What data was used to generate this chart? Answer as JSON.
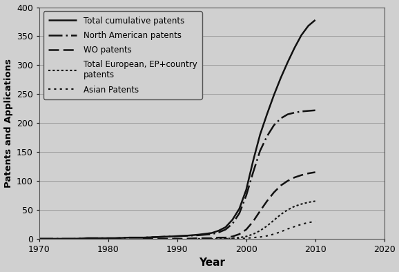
{
  "title": "",
  "xlabel": "Year",
  "ylabel": "Patents and Applications",
  "xlim": [
    1970,
    2020
  ],
  "ylim": [
    0,
    400
  ],
  "yticks": [
    0,
    50,
    100,
    150,
    200,
    250,
    300,
    350,
    400
  ],
  "xticks": [
    1970,
    1980,
    1990,
    2000,
    2010,
    2020
  ],
  "background_color": "#d0d0d0",
  "plot_bg_color": "#d0d0d0",
  "grid_color": "#999999",
  "series": [
    {
      "label": "Total cumulative patents",
      "style_index": 0,
      "linewidth": 1.8,
      "color": "#111111",
      "x": [
        1970,
        1973,
        1975,
        1977,
        1979,
        1981,
        1983,
        1985,
        1987,
        1989,
        1991,
        1993,
        1995,
        1996,
        1997,
        1998,
        1999,
        2000,
        2001,
        2002,
        2003,
        2004,
        2005,
        2006,
        2007,
        2008,
        2009,
        2010
      ],
      "y": [
        0,
        0,
        0,
        1,
        1,
        1,
        2,
        2,
        3,
        4,
        5,
        7,
        10,
        14,
        20,
        33,
        52,
        85,
        135,
        180,
        215,
        248,
        278,
        305,
        330,
        352,
        368,
        378
      ]
    },
    {
      "label": "North American patents",
      "style_index": 1,
      "linewidth": 1.8,
      "color": "#111111",
      "x": [
        1970,
        1973,
        1975,
        1977,
        1979,
        1981,
        1983,
        1985,
        1987,
        1989,
        1991,
        1993,
        1995,
        1996,
        1997,
        1998,
        1999,
        2000,
        2001,
        2002,
        2003,
        2004,
        2005,
        2006,
        2007,
        2008,
        2009,
        2010
      ],
      "y": [
        0,
        0,
        0,
        1,
        1,
        1,
        2,
        2,
        3,
        4,
        5,
        6,
        8,
        11,
        16,
        26,
        44,
        75,
        115,
        152,
        177,
        196,
        208,
        215,
        218,
        220,
        221,
        222
      ]
    },
    {
      "label": "WO patents",
      "style_index": 2,
      "linewidth": 1.8,
      "color": "#111111",
      "x": [
        1985,
        1987,
        1989,
        1991,
        1993,
        1995,
        1996,
        1997,
        1998,
        1999,
        2000,
        2001,
        2002,
        2003,
        2004,
        2005,
        2006,
        2007,
        2008,
        2009,
        2010
      ],
      "y": [
        0,
        0,
        0,
        0,
        1,
        1,
        2,
        2,
        4,
        8,
        16,
        30,
        48,
        65,
        80,
        92,
        100,
        106,
        110,
        113,
        115
      ]
    },
    {
      "label": "Total European, EP+country\npatents",
      "style_index": 3,
      "linewidth": 1.5,
      "color": "#111111",
      "x": [
        1993,
        1995,
        1997,
        1998,
        1999,
        2000,
        2001,
        2002,
        2003,
        2004,
        2005,
        2006,
        2007,
        2008,
        2009,
        2010
      ],
      "y": [
        0,
        0,
        0,
        1,
        2,
        4,
        8,
        14,
        22,
        32,
        42,
        50,
        56,
        60,
        63,
        65
      ]
    },
    {
      "label": "Asian Patents",
      "style_index": 4,
      "linewidth": 1.5,
      "color": "#111111",
      "x": [
        1997,
        1998,
        1999,
        2000,
        2001,
        2002,
        2003,
        2004,
        2005,
        2006,
        2007,
        2008,
        2009,
        2010
      ],
      "y": [
        0,
        0,
        0,
        1,
        2,
        3,
        5,
        8,
        12,
        17,
        21,
        25,
        28,
        30
      ]
    }
  ],
  "legend": {
    "loc": "upper left",
    "fontsize": 8.5,
    "handlelength": 3.5,
    "labelspacing": 0.7,
    "borderpad": 0.6
  }
}
